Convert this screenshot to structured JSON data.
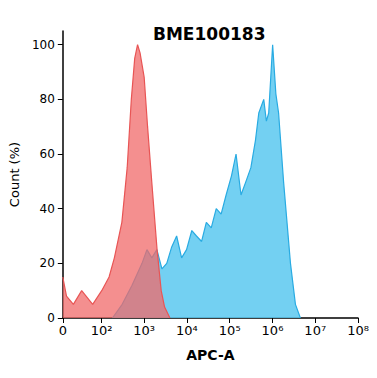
{
  "chart_data": {
    "type": "area",
    "title": "BME100183",
    "x_label": "APC-A",
    "y_label": "Count (%)",
    "log": "x",
    "grid": false,
    "xlim": [
      0,
      100000000
    ],
    "xticks": [
      0,
      {
        "value": 100,
        "label": "10²"
      },
      {
        "value": 1000,
        "label": "10³"
      },
      {
        "value": 10000,
        "label": "10⁴"
      },
      {
        "value": 100000,
        "label": "10⁵"
      },
      {
        "value": 1000000,
        "label": "10⁶"
      },
      {
        "value": 10000000,
        "label": "10⁷"
      },
      {
        "value": 100000000,
        "label": "10⁸"
      }
    ],
    "ylim": [
      0,
      105
    ],
    "yticks": [
      0,
      20,
      40,
      60,
      80,
      100
    ],
    "series": [
      {
        "color": "#5bc8f0",
        "x": [
          180,
          305,
          520,
          890,
          1160,
          1510,
          1980,
          2600,
          3370,
          4400,
          5740,
          7500,
          9790,
          13000,
          16700,
          22000,
          28400,
          37000,
          48400,
          63000,
          82400,
          110000,
          140600,
          183600,
          240000,
          312500,
          400000,
          478500,
          625000,
          720000,
          816000,
          1009000,
          1200000,
          1390000,
          1815000,
          2636000,
          3443000,
          4496000
        ],
        "values": [
          0,
          5,
          12,
          20,
          25,
          22,
          25,
          18,
          20,
          26,
          30,
          22,
          25,
          32,
          30,
          28,
          35,
          33,
          40,
          38,
          45,
          52,
          60,
          45,
          50,
          55,
          65,
          75,
          80,
          72,
          75,
          100,
          82,
          75,
          50,
          20,
          5,
          0
        ]
      },
      {
        "color": "#f06a6a",
        "x": [
          0,
          5,
          15,
          30,
          60,
          100,
          150,
          200,
          300,
          400,
          500,
          600,
          700,
          800,
          1000,
          1200,
          1500,
          2000,
          2500,
          3000,
          4000
        ],
        "values": [
          15,
          8,
          5,
          10,
          5,
          10,
          15,
          22,
          35,
          55,
          80,
          95,
          100,
          97,
          88,
          70,
          50,
          25,
          10,
          4,
          0
        ]
      }
    ]
  }
}
